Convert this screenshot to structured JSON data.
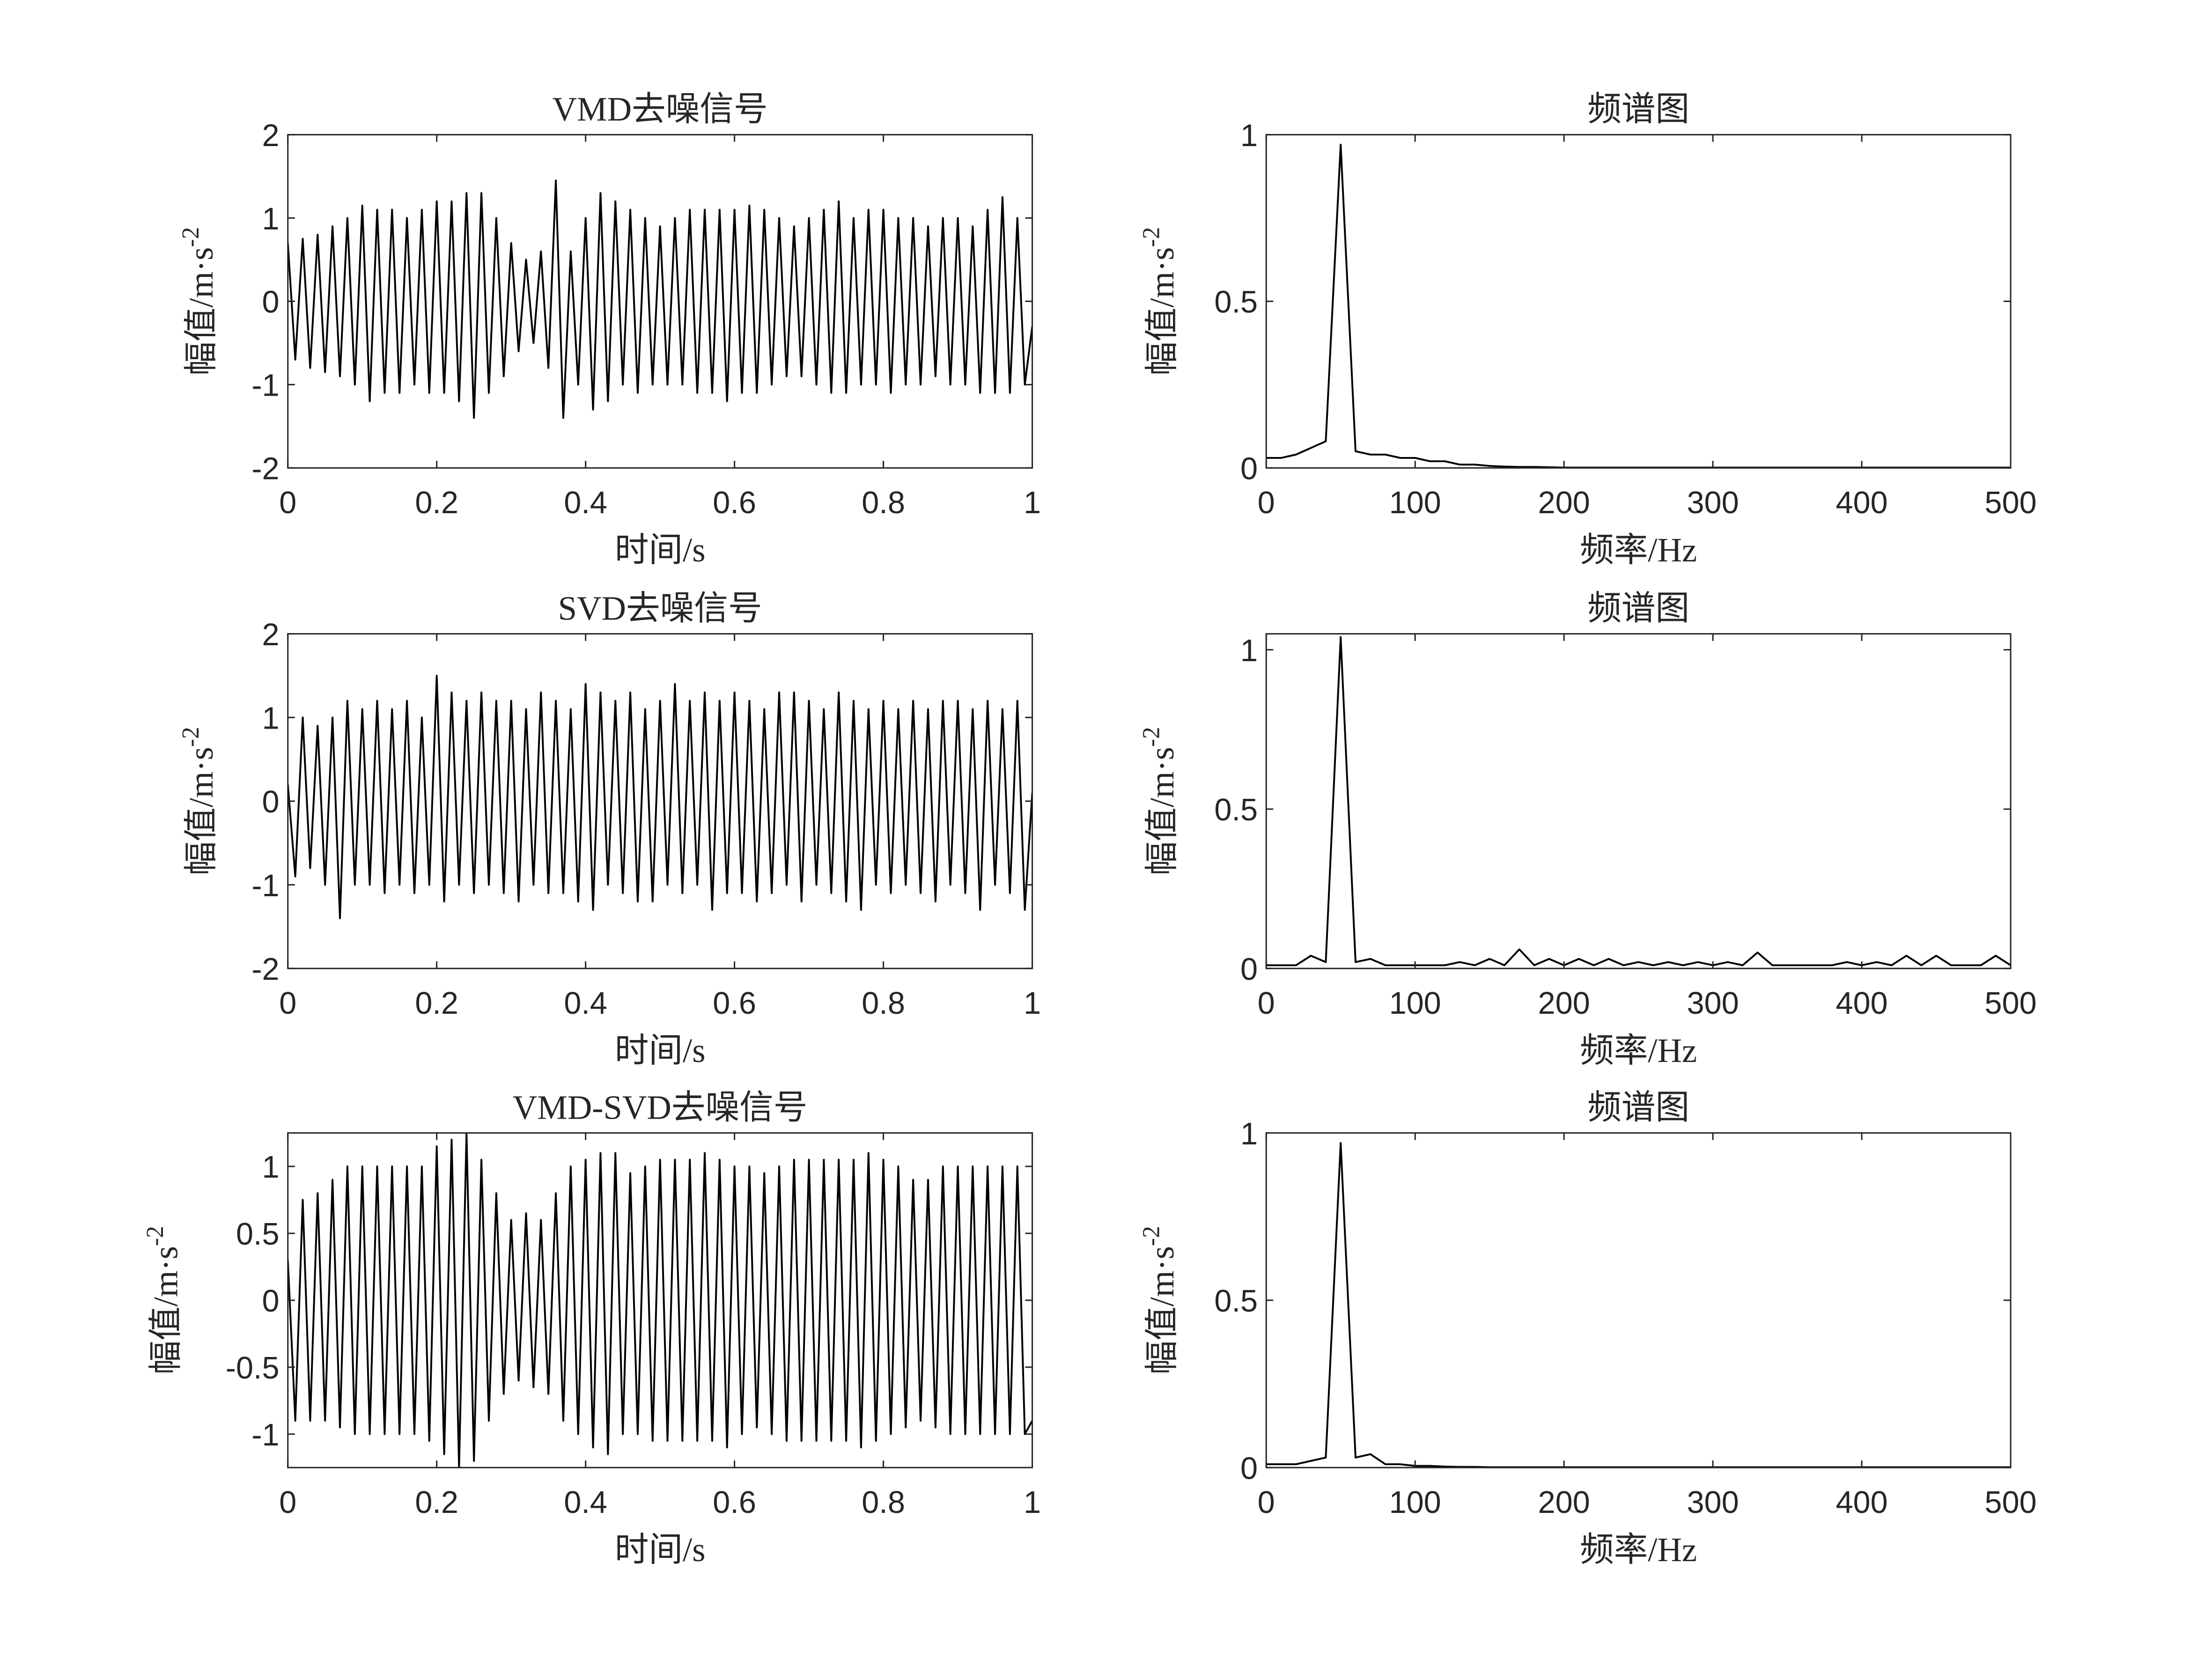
{
  "chart_data": [
    {
      "type": "line",
      "title": "VMD去噪信号",
      "xlabel": "时间/s",
      "ylabel": {
        "text": "幅值/m·s",
        "superscript": "-2"
      },
      "xlim": [
        0,
        1
      ],
      "ylim": [
        -2,
        2
      ],
      "xticks": [
        0,
        0.2,
        0.4,
        0.6,
        0.8,
        1
      ],
      "yticks": [
        -2,
        -1,
        0,
        1,
        2
      ],
      "color": "#000000",
      "x": [
        0,
        0.01,
        0.02,
        0.03,
        0.04,
        0.05,
        0.06,
        0.07,
        0.08,
        0.09,
        0.1,
        0.11,
        0.12,
        0.13,
        0.14,
        0.15,
        0.16,
        0.17,
        0.18,
        0.19,
        0.2,
        0.21,
        0.22,
        0.23,
        0.24,
        0.25,
        0.26,
        0.27,
        0.28,
        0.29,
        0.3,
        0.31,
        0.32,
        0.33,
        0.34,
        0.35,
        0.36,
        0.37,
        0.38,
        0.39,
        0.4,
        0.41,
        0.42,
        0.43,
        0.44,
        0.45,
        0.46,
        0.47,
        0.48,
        0.49,
        0.5,
        0.51,
        0.52,
        0.53,
        0.54,
        0.55,
        0.56,
        0.57,
        0.58,
        0.59,
        0.6,
        0.61,
        0.62,
        0.63,
        0.64,
        0.65,
        0.66,
        0.67,
        0.68,
        0.69,
        0.7,
        0.71,
        0.72,
        0.73,
        0.74,
        0.75,
        0.76,
        0.77,
        0.78,
        0.79,
        0.8,
        0.81,
        0.82,
        0.83,
        0.84,
        0.85,
        0.86,
        0.87,
        0.88,
        0.89,
        0.9,
        0.91,
        0.92,
        0.93,
        0.94,
        0.95,
        0.96,
        0.97,
        0.98,
        0.99,
        1
      ],
      "values": [
        0.7,
        -0.7,
        0.75,
        -0.8,
        0.8,
        -0.85,
        0.9,
        -0.9,
        1.0,
        -1.0,
        1.15,
        -1.2,
        1.1,
        -1.1,
        1.1,
        -1.1,
        1.0,
        -1.0,
        1.1,
        -1.1,
        1.2,
        -1.1,
        1.2,
        -1.2,
        1.3,
        -1.4,
        1.3,
        -1.1,
        1.0,
        -0.9,
        0.7,
        -0.6,
        0.5,
        -0.5,
        0.6,
        -0.8,
        1.45,
        -1.4,
        0.6,
        -1.0,
        1.0,
        -1.3,
        1.3,
        -1.2,
        1.2,
        -1.0,
        1.1,
        -1.1,
        1.0,
        -1.0,
        0.9,
        -1.0,
        1.0,
        -1.0,
        1.1,
        -1.1,
        1.1,
        -1.1,
        1.1,
        -1.2,
        1.1,
        -1.1,
        1.15,
        -1.1,
        1.1,
        -1.0,
        1.0,
        -0.9,
        0.9,
        -0.9,
        1.0,
        -1.0,
        1.1,
        -1.1,
        1.2,
        -1.1,
        1.0,
        -1.0,
        1.1,
        -1.0,
        1.1,
        -1.1,
        1.0,
        -1.0,
        1.0,
        -1.0,
        0.9,
        -0.9,
        1.0,
        -1.0,
        1.0,
        -1.0,
        0.9,
        -1.1,
        1.1,
        -1.1,
        1.25,
        -1.1,
        1.0,
        -1.0,
        -0.3
      ]
    },
    {
      "type": "line",
      "title": "频谱图",
      "xlabel": "频率/Hz",
      "ylabel": {
        "text": "幅值/m·s",
        "superscript": "-2"
      },
      "xlim": [
        0,
        500
      ],
      "ylim": [
        0,
        1
      ],
      "xticks": [
        0,
        100,
        200,
        300,
        400,
        500
      ],
      "yticks": [
        0,
        0.5,
        1
      ],
      "color": "#000000",
      "x": [
        0,
        10,
        20,
        30,
        40,
        50,
        60,
        70,
        80,
        90,
        100,
        110,
        120,
        130,
        140,
        150,
        160,
        170,
        180,
        190,
        200,
        210,
        220,
        230,
        240,
        250,
        260,
        270,
        280,
        290,
        300,
        310,
        320,
        330,
        340,
        350,
        360,
        370,
        380,
        390,
        400,
        410,
        420,
        430,
        440,
        450,
        460,
        470,
        480,
        490,
        500
      ],
      "values": [
        0.03,
        0.03,
        0.04,
        0.06,
        0.08,
        0.97,
        0.05,
        0.04,
        0.04,
        0.03,
        0.03,
        0.02,
        0.02,
        0.01,
        0.01,
        0.006,
        0.004,
        0.003,
        0.003,
        0.002,
        0.001,
        0.001,
        0.001,
        0.001,
        0.001,
        0.001,
        0.001,
        0.001,
        0.001,
        0.001,
        0.001,
        0.001,
        0.001,
        0.001,
        0.001,
        0.001,
        0.001,
        0.001,
        0.001,
        0.001,
        0.001,
        0.001,
        0.001,
        0.001,
        0.001,
        0.001,
        0.001,
        0.001,
        0.001,
        0.001,
        0.001
      ]
    },
    {
      "type": "line",
      "title": "SVD去噪信号",
      "xlabel": "时间/s",
      "ylabel": {
        "text": "幅值/m·s",
        "superscript": "-2"
      },
      "xlim": [
        0,
        1
      ],
      "ylim": [
        -2,
        2
      ],
      "xticks": [
        0,
        0.2,
        0.4,
        0.6,
        0.8,
        1
      ],
      "yticks": [
        -2,
        -1,
        0,
        1,
        2
      ],
      "color": "#000000",
      "x": [
        0,
        0.01,
        0.02,
        0.03,
        0.04,
        0.05,
        0.06,
        0.07,
        0.08,
        0.09,
        0.1,
        0.11,
        0.12,
        0.13,
        0.14,
        0.15,
        0.16,
        0.17,
        0.18,
        0.19,
        0.2,
        0.21,
        0.22,
        0.23,
        0.24,
        0.25,
        0.26,
        0.27,
        0.28,
        0.29,
        0.3,
        0.31,
        0.32,
        0.33,
        0.34,
        0.35,
        0.36,
        0.37,
        0.38,
        0.39,
        0.4,
        0.41,
        0.42,
        0.43,
        0.44,
        0.45,
        0.46,
        0.47,
        0.48,
        0.49,
        0.5,
        0.51,
        0.52,
        0.53,
        0.54,
        0.55,
        0.56,
        0.57,
        0.58,
        0.59,
        0.6,
        0.61,
        0.62,
        0.63,
        0.64,
        0.65,
        0.66,
        0.67,
        0.68,
        0.69,
        0.7,
        0.71,
        0.72,
        0.73,
        0.74,
        0.75,
        0.76,
        0.77,
        0.78,
        0.79,
        0.8,
        0.81,
        0.82,
        0.83,
        0.84,
        0.85,
        0.86,
        0.87,
        0.88,
        0.89,
        0.9,
        0.91,
        0.92,
        0.93,
        0.94,
        0.95,
        0.96,
        0.97,
        0.98,
        0.99,
        1
      ],
      "values": [
        0.2,
        -0.9,
        1.0,
        -0.8,
        0.9,
        -1.0,
        1.0,
        -1.4,
        1.2,
        -1.0,
        1.1,
        -1.0,
        1.2,
        -1.1,
        1.1,
        -1.0,
        1.2,
        -1.1,
        1.0,
        -1.0,
        1.5,
        -1.2,
        1.3,
        -1.0,
        1.2,
        -1.1,
        1.3,
        -1.0,
        1.2,
        -1.1,
        1.2,
        -1.2,
        1.1,
        -1.0,
        1.3,
        -1.1,
        1.2,
        -1.1,
        1.1,
        -1.2,
        1.4,
        -1.3,
        1.3,
        -1.0,
        1.2,
        -1.1,
        1.3,
        -1.2,
        1.1,
        -1.2,
        1.2,
        -1.0,
        1.4,
        -1.1,
        1.2,
        -1.0,
        1.3,
        -1.3,
        1.2,
        -1.1,
        1.3,
        -1.1,
        1.2,
        -1.2,
        1.1,
        -1.1,
        1.3,
        -1.0,
        1.3,
        -1.2,
        1.2,
        -1.0,
        1.1,
        -1.1,
        1.3,
        -1.2,
        1.2,
        -1.3,
        1.1,
        -1.0,
        1.2,
        -1.1,
        1.1,
        -1.0,
        1.2,
        -1.1,
        1.1,
        -1.2,
        1.2,
        -1.0,
        1.2,
        -1.1,
        1.1,
        -1.3,
        1.2,
        -1.0,
        1.1,
        -1.1,
        1.2,
        -1.3,
        0.1
      ]
    },
    {
      "type": "line",
      "title": "频谱图",
      "xlabel": "频率/Hz",
      "ylabel": {
        "text": "幅值/m·s",
        "superscript": "-2"
      },
      "xlim": [
        0,
        500
      ],
      "ylim": [
        0,
        1.05
      ],
      "xticks": [
        0,
        100,
        200,
        300,
        400,
        500
      ],
      "yticks": [
        0,
        0.5,
        1
      ],
      "color": "#000000",
      "x": [
        0,
        10,
        20,
        30,
        40,
        50,
        60,
        70,
        80,
        90,
        100,
        110,
        120,
        130,
        140,
        150,
        160,
        170,
        180,
        190,
        200,
        210,
        220,
        230,
        240,
        250,
        260,
        270,
        280,
        290,
        300,
        310,
        320,
        330,
        340,
        350,
        360,
        370,
        380,
        390,
        400,
        410,
        420,
        430,
        440,
        450,
        460,
        470,
        480,
        490,
        500
      ],
      "values": [
        0.01,
        0.01,
        0.01,
        0.04,
        0.02,
        1.04,
        0.02,
        0.03,
        0.01,
        0.01,
        0.01,
        0.01,
        0.01,
        0.02,
        0.01,
        0.03,
        0.01,
        0.06,
        0.01,
        0.03,
        0.01,
        0.03,
        0.01,
        0.03,
        0.01,
        0.02,
        0.01,
        0.02,
        0.01,
        0.02,
        0.01,
        0.02,
        0.01,
        0.05,
        0.01,
        0.01,
        0.01,
        0.01,
        0.01,
        0.02,
        0.01,
        0.02,
        0.01,
        0.04,
        0.01,
        0.04,
        0.01,
        0.01,
        0.01,
        0.04,
        0.01
      ]
    },
    {
      "type": "line",
      "title": "VMD-SVD去噪信号",
      "xlabel": "时间/s",
      "ylabel": {
        "text": "幅值/m·s",
        "superscript": "-2"
      },
      "xlim": [
        0,
        1
      ],
      "ylim": [
        -1.25,
        1.25
      ],
      "xticks": [
        0,
        0.2,
        0.4,
        0.6,
        0.8,
        1
      ],
      "yticks": [
        -1,
        -0.5,
        0,
        0.5,
        1
      ],
      "color": "#000000",
      "x": [
        0,
        0.01,
        0.02,
        0.03,
        0.04,
        0.05,
        0.06,
        0.07,
        0.08,
        0.09,
        0.1,
        0.11,
        0.12,
        0.13,
        0.14,
        0.15,
        0.16,
        0.17,
        0.18,
        0.19,
        0.2,
        0.21,
        0.22,
        0.23,
        0.24,
        0.25,
        0.26,
        0.27,
        0.28,
        0.29,
        0.3,
        0.31,
        0.32,
        0.33,
        0.34,
        0.35,
        0.36,
        0.37,
        0.38,
        0.39,
        0.4,
        0.41,
        0.42,
        0.43,
        0.44,
        0.45,
        0.46,
        0.47,
        0.48,
        0.49,
        0.5,
        0.51,
        0.52,
        0.53,
        0.54,
        0.55,
        0.56,
        0.57,
        0.58,
        0.59,
        0.6,
        0.61,
        0.62,
        0.63,
        0.64,
        0.65,
        0.66,
        0.67,
        0.68,
        0.69,
        0.7,
        0.71,
        0.72,
        0.73,
        0.74,
        0.75,
        0.76,
        0.77,
        0.78,
        0.79,
        0.8,
        0.81,
        0.82,
        0.83,
        0.84,
        0.85,
        0.86,
        0.87,
        0.88,
        0.89,
        0.9,
        0.91,
        0.92,
        0.93,
        0.94,
        0.95,
        0.96,
        0.97,
        0.98,
        0.99,
        1
      ],
      "values": [
        0.3,
        -0.9,
        0.75,
        -0.9,
        0.8,
        -0.9,
        0.9,
        -0.95,
        1.0,
        -1.0,
        1.0,
        -1.0,
        1.0,
        -1.0,
        1.0,
        -1.0,
        1.0,
        -1.0,
        1.0,
        -1.05,
        1.15,
        -1.15,
        1.2,
        -1.25,
        1.25,
        -1.2,
        1.05,
        -0.9,
        0.8,
        -0.7,
        0.6,
        -0.6,
        0.65,
        -0.65,
        0.6,
        -0.7,
        0.8,
        -0.9,
        1.0,
        -1.0,
        1.05,
        -1.1,
        1.1,
        -1.15,
        1.1,
        -1.0,
        0.95,
        -1.0,
        1.0,
        -1.05,
        1.05,
        -1.05,
        1.05,
        -1.05,
        1.05,
        -1.05,
        1.1,
        -1.05,
        1.05,
        -1.1,
        1.0,
        -1.0,
        1.0,
        -0.95,
        0.95,
        -1.0,
        1.0,
        -1.05,
        1.05,
        -1.05,
        1.05,
        -1.05,
        1.05,
        -1.05,
        1.05,
        -1.05,
        1.05,
        -1.1,
        1.1,
        -1.05,
        1.05,
        -1.0,
        1.0,
        -0.95,
        0.9,
        -0.9,
        0.9,
        -0.95,
        1.0,
        -1.0,
        1.0,
        -1.0,
        1.0,
        -1.0,
        1.0,
        -1.0,
        1.0,
        -1.0,
        1.0,
        -1.0,
        -0.9
      ]
    },
    {
      "type": "line",
      "title": "频谱图",
      "xlabel": "频率/Hz",
      "ylabel": {
        "text": "幅值/m·s",
        "superscript": "-2"
      },
      "xlim": [
        0,
        500
      ],
      "ylim": [
        0,
        1
      ],
      "xticks": [
        0,
        100,
        200,
        300,
        400,
        500
      ],
      "yticks": [
        0,
        0.5,
        1
      ],
      "color": "#000000",
      "x": [
        0,
        10,
        20,
        30,
        40,
        50,
        60,
        70,
        80,
        90,
        100,
        110,
        120,
        130,
        140,
        150,
        160,
        170,
        180,
        190,
        200,
        210,
        220,
        230,
        240,
        250,
        260,
        270,
        280,
        290,
        300,
        310,
        320,
        330,
        340,
        350,
        360,
        370,
        380,
        390,
        400,
        410,
        420,
        430,
        440,
        450,
        460,
        470,
        480,
        490,
        500
      ],
      "values": [
        0.01,
        0.01,
        0.01,
        0.02,
        0.03,
        0.97,
        0.03,
        0.04,
        0.01,
        0.01,
        0.005,
        0.005,
        0.003,
        0.002,
        0.002,
        0.001,
        0.001,
        0.001,
        0.001,
        0.001,
        0.001,
        0.001,
        0.001,
        0.001,
        0.001,
        0.001,
        0.001,
        0.001,
        0.001,
        0.001,
        0.001,
        0.001,
        0.001,
        0.001,
        0.001,
        0.001,
        0.001,
        0.001,
        0.001,
        0.001,
        0.001,
        0.001,
        0.001,
        0.001,
        0.001,
        0.001,
        0.001,
        0.001,
        0.001,
        0.001,
        0.001
      ]
    }
  ]
}
